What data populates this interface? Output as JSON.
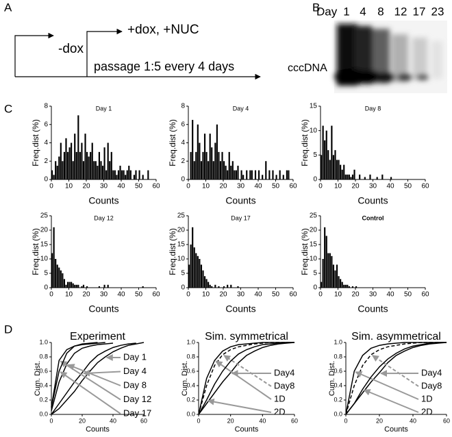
{
  "panel_labels": [
    "A",
    "B",
    "C",
    "D"
  ],
  "panel_a": {
    "steps": [
      "-dox",
      "+dox, +NUC",
      "passage 1:5 every 4 days"
    ]
  },
  "panel_b": {
    "lane_header": "Day",
    "lanes": [
      "1",
      "4",
      "8",
      "12",
      "17",
      "23"
    ],
    "band_label": "cccDNA"
  },
  "chart_data": [
    {
      "type": "bar",
      "title": "Day 1",
      "xlabel": "Counts",
      "ylabel": "Freq.dist (%)",
      "color": "#000000",
      "x": [
        0,
        1,
        2,
        3,
        4,
        5,
        6,
        7,
        8,
        9,
        10,
        11,
        12,
        13,
        14,
        15,
        16,
        17,
        18,
        19,
        20,
        21,
        22,
        23,
        24,
        25,
        26,
        27,
        28,
        29,
        30,
        31,
        32,
        33,
        34,
        35,
        36,
        37,
        38,
        39,
        40,
        41,
        42,
        43,
        44,
        45,
        47,
        48,
        50,
        52,
        55
      ],
      "values": [
        1,
        0.5,
        2,
        1.5,
        2.5,
        4,
        2,
        3,
        4.5,
        3,
        3.5,
        4,
        2,
        5,
        3,
        7,
        3,
        4,
        2,
        5,
        3,
        2.5,
        3,
        4,
        2,
        2,
        1.5,
        3,
        2,
        1.5,
        3.5,
        1,
        4,
        2,
        3,
        1,
        1,
        0.5,
        1,
        1.5,
        1,
        1,
        0.5,
        1,
        1.5,
        1,
        0.5,
        1,
        1,
        0.5,
        1
      ],
      "xlim": [
        0,
        60
      ],
      "xticks": [
        0,
        10,
        20,
        30,
        40,
        50,
        60
      ],
      "ylim": [
        0,
        8
      ],
      "yticks": [
        0,
        2,
        4,
        6,
        8
      ]
    },
    {
      "type": "bar",
      "title": "Day 4",
      "xlabel": "Counts",
      "ylabel": "Freq.dist (%)",
      "color": "#000000",
      "x": [
        1,
        2,
        3,
        4,
        5,
        6,
        7,
        8,
        9,
        10,
        11,
        12,
        13,
        14,
        15,
        16,
        17,
        18,
        19,
        20,
        21,
        22,
        23,
        24,
        25,
        26,
        27,
        28,
        30,
        31,
        33,
        35,
        36,
        38,
        40,
        42,
        44,
        46,
        48,
        50,
        52,
        54,
        56,
        57
      ],
      "values": [
        3,
        6.5,
        2,
        3,
        6,
        4,
        2,
        3,
        5,
        3,
        2,
        5,
        3.5,
        2,
        4,
        6,
        3,
        2,
        3,
        2,
        1.5,
        1,
        3,
        1.5,
        2,
        1,
        1,
        1.5,
        1,
        0.5,
        1,
        1,
        1,
        1,
        1,
        0.5,
        2,
        1,
        1,
        0.5,
        1,
        0.5,
        1,
        1
      ],
      "xlim": [
        0,
        60
      ],
      "xticks": [
        0,
        10,
        20,
        30,
        40,
        50,
        60
      ],
      "ylim": [
        0,
        8
      ],
      "yticks": [
        0,
        2,
        4,
        6,
        8
      ]
    },
    {
      "type": "bar",
      "title": "Day 8",
      "xlabel": "Counts",
      "ylabel": "Freq.dist (%)",
      "color": "#000000",
      "x": [
        0,
        1,
        2,
        3,
        4,
        5,
        6,
        7,
        8,
        9,
        10,
        11,
        12,
        13,
        14,
        15,
        16,
        17,
        18,
        19,
        22,
        25,
        28,
        32,
        35,
        40
      ],
      "values": [
        5,
        11,
        8,
        10,
        6,
        4,
        11,
        5,
        6,
        4,
        4,
        3,
        2,
        3,
        1,
        1,
        1,
        0.5,
        1,
        2,
        1,
        0.5,
        1,
        0.5,
        1,
        0.5
      ],
      "xlim": [
        0,
        60
      ],
      "xticks": [
        0,
        10,
        20,
        30,
        40,
        50,
        60
      ],
      "ylim": [
        0,
        15
      ],
      "yticks": [
        0,
        5,
        10,
        15
      ]
    },
    {
      "type": "bar",
      "title": "Day 12",
      "xlabel": "Counts",
      "ylabel": "Freq.dist (%)",
      "color": "#000000",
      "x": [
        0,
        1,
        2,
        3,
        4,
        5,
        6,
        7,
        8,
        9,
        10,
        11,
        12,
        13,
        14,
        15,
        17,
        18,
        20,
        27,
        30,
        32,
        52
      ],
      "values": [
        12,
        21,
        10,
        8,
        7,
        6,
        5,
        3,
        1,
        2,
        2,
        2,
        1.5,
        1,
        1,
        1,
        0.5,
        1,
        0.5,
        0.5,
        1,
        1,
        0.5
      ],
      "xlim": [
        0,
        60
      ],
      "xticks": [
        0,
        10,
        20,
        30,
        40,
        50,
        60
      ],
      "ylim": [
        0,
        25
      ],
      "yticks": [
        0,
        5,
        10,
        15,
        20,
        25
      ]
    },
    {
      "type": "bar",
      "title": "Day 17",
      "xlabel": "Counts",
      "ylabel": "Freq.dist (%)",
      "color": "#000000",
      "x": [
        0,
        1,
        2,
        3,
        4,
        5,
        6,
        7,
        8,
        9,
        10,
        11,
        12,
        13,
        15,
        17,
        20,
        22,
        24,
        28
      ],
      "values": [
        8,
        15,
        21,
        14,
        12,
        11,
        10,
        8,
        6,
        4,
        3,
        2,
        1,
        0.5,
        1,
        0.5,
        0.5,
        1,
        1,
        0.5
      ],
      "xlim": [
        0,
        60
      ],
      "xticks": [
        0,
        10,
        20,
        30,
        40,
        50,
        60
      ],
      "ylim": [
        0,
        25
      ],
      "yticks": [
        0,
        5,
        10,
        15,
        20,
        25
      ]
    },
    {
      "type": "bar",
      "title": "Control",
      "title_weight": "bold",
      "xlabel": "Counts",
      "ylabel": "Freq.dist (%)",
      "color": "#000000",
      "x": [
        0,
        1,
        2,
        3,
        4,
        5,
        6,
        7,
        8,
        9,
        10,
        11,
        12,
        13,
        14,
        15,
        16,
        18,
        20
      ],
      "values": [
        2,
        10,
        21,
        18,
        12,
        12,
        11,
        8,
        6,
        8,
        4,
        3,
        2,
        1,
        1,
        1,
        0.5,
        0.5,
        0.5
      ],
      "xlim": [
        0,
        60
      ],
      "xticks": [
        0,
        10,
        20,
        30,
        40,
        50,
        60
      ],
      "ylim": [
        0,
        25
      ],
      "yticks": [
        0,
        5,
        10,
        15,
        20,
        25
      ]
    },
    {
      "type": "line",
      "title": "Experiment",
      "xlabel": "Counts",
      "ylabel": "Cum. Dist.",
      "x": [
        0,
        5,
        10,
        15,
        20,
        25,
        30,
        35,
        40,
        45,
        50,
        55,
        60
      ],
      "series": [
        {
          "name": "Day 1",
          "color": "#000000",
          "values": [
            0,
            0.08,
            0.2,
            0.32,
            0.47,
            0.6,
            0.72,
            0.8,
            0.87,
            0.92,
            0.96,
            0.98,
            1
          ]
        },
        {
          "name": "Day 4",
          "color": "#000000",
          "values": [
            0,
            0.15,
            0.3,
            0.45,
            0.58,
            0.72,
            0.82,
            0.88,
            0.93,
            0.96,
            0.98,
            0.99,
            null
          ]
        },
        {
          "name": "Day 8",
          "color": "#000000",
          "values": [
            0.05,
            0.45,
            0.7,
            0.85,
            0.92,
            0.95,
            0.97,
            0.98,
            0.99,
            null,
            null,
            null,
            null
          ]
        },
        {
          "name": "Day 12",
          "color": "#000000",
          "values": [
            0.1,
            0.75,
            0.9,
            0.95,
            0.97,
            0.98,
            0.99,
            1,
            null,
            null,
            null,
            null,
            null
          ]
        },
        {
          "name": "Day 17",
          "color": "#000000",
          "values": [
            0.1,
            0.6,
            0.85,
            0.95,
            0.98,
            0.99,
            1,
            null,
            null,
            null,
            null,
            null,
            null
          ]
        }
      ],
      "xlim": [
        0,
        60
      ],
      "xticks": [
        0,
        20,
        40,
        60
      ],
      "ylim": [
        0,
        1
      ],
      "yticks": [
        {
          "value": 0,
          "label": "0.0"
        },
        {
          "value": 0.2,
          "label": "0.2"
        },
        {
          "value": 0.4,
          "label": "0.4"
        },
        {
          "value": 0.6,
          "label": "0.6"
        },
        {
          "value": 0.8,
          "label": "0.8"
        },
        {
          "value": 1,
          "label": "1.0"
        }
      ]
    },
    {
      "type": "line",
      "title": "Sim. symmetrical",
      "xlabel": "Counts",
      "ylabel": "Cum. Dist.",
      "x": [
        0,
        5,
        10,
        15,
        20,
        25,
        30,
        35,
        40,
        45,
        50,
        55,
        60
      ],
      "series": [
        {
          "name": "Day4",
          "color": "#000000",
          "values": [
            0,
            0.15,
            0.3,
            0.45,
            0.58,
            0.72,
            0.82,
            0.88,
            0.93,
            0.96,
            0.98,
            0.99,
            1
          ]
        },
        {
          "name": "Day8",
          "color": "#000000",
          "dash": true,
          "values": [
            0,
            0.4,
            0.68,
            0.83,
            0.9,
            0.94,
            0.96,
            0.98,
            0.99,
            1,
            1,
            1,
            1
          ]
        },
        {
          "name": "1D",
          "color": "#000000",
          "values": [
            0,
            0.5,
            0.75,
            0.88,
            0.94,
            0.97,
            0.98,
            0.99,
            1,
            1,
            1,
            1,
            1
          ]
        },
        {
          "name": "2D",
          "color": "#000000",
          "values": [
            0,
            0.2,
            0.42,
            0.6,
            0.74,
            0.84,
            0.9,
            0.94,
            0.97,
            0.98,
            0.99,
            1,
            1
          ]
        }
      ],
      "xlim": [
        0,
        60
      ],
      "xticks": [
        0,
        20,
        40,
        60
      ],
      "ylim": [
        0,
        1
      ],
      "yticks": [
        {
          "value": 0,
          "label": "0.0"
        },
        {
          "value": 0.2,
          "label": "0.2"
        },
        {
          "value": 0.4,
          "label": "0.4"
        },
        {
          "value": 0.6,
          "label": "0.6"
        },
        {
          "value": 0.8,
          "label": "0.8"
        },
        {
          "value": 1,
          "label": "1.0"
        }
      ]
    },
    {
      "type": "line",
      "title": "Sim. asymmetrical",
      "xlabel": "Counts",
      "ylabel": "Cum. Dist.",
      "x": [
        0,
        5,
        10,
        15,
        20,
        25,
        30,
        35,
        40,
        45,
        50,
        55,
        60
      ],
      "series": [
        {
          "name": "Day4",
          "color": "#000000",
          "values": [
            0,
            0.15,
            0.3,
            0.45,
            0.58,
            0.72,
            0.82,
            0.88,
            0.93,
            0.96,
            0.98,
            0.99,
            1
          ]
        },
        {
          "name": "Day8",
          "color": "#000000",
          "dash": true,
          "values": [
            0,
            0.4,
            0.68,
            0.83,
            0.9,
            0.94,
            0.96,
            0.98,
            0.99,
            1,
            1,
            1,
            1
          ]
        },
        {
          "name": "1D",
          "color": "#000000",
          "values": [
            0,
            0.6,
            0.82,
            0.92,
            0.96,
            0.98,
            0.99,
            1,
            1,
            1,
            1,
            1,
            1
          ]
        },
        {
          "name": "2D",
          "color": "#000000",
          "values": [
            0,
            0.15,
            0.35,
            0.52,
            0.66,
            0.77,
            0.85,
            0.91,
            0.95,
            0.97,
            0.99,
            1,
            1
          ]
        }
      ],
      "xlim": [
        0,
        60
      ],
      "xticks": [
        0,
        20,
        40,
        60
      ],
      "ylim": [
        0,
        1
      ],
      "yticks": [
        {
          "value": 0,
          "label": "0.0"
        },
        {
          "value": 0.2,
          "label": "0.2"
        },
        {
          "value": 0.4,
          "label": "0.4"
        },
        {
          "value": 0.6,
          "label": "0.6"
        },
        {
          "value": 0.8,
          "label": "0.8"
        },
        {
          "value": 1,
          "label": "1.0"
        }
      ]
    }
  ]
}
